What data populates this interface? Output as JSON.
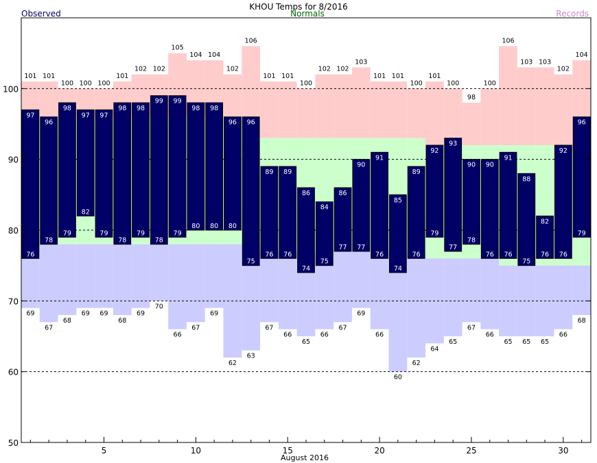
{
  "header": {
    "title": "KHOU Temps for 8/2016",
    "legend_observed": "Observed",
    "legend_normals": "Normals",
    "legend_records": "Records"
  },
  "colors": {
    "observed": "#000066",
    "observed_text": "#ffffff",
    "record_band": "#ffcccc",
    "normal_band": "#ccffcc",
    "record_low_band": "#ccccff",
    "legend_observed": "#000066",
    "legend_normals": "#006600",
    "legend_records": "#cc88cc"
  },
  "chart_data": {
    "type": "bar",
    "title": "KHOU Temps for 8/2016",
    "xlabel": "August 2016",
    "ylabel": "",
    "ylim": [
      50,
      110
    ],
    "xlim": [
      0.5,
      31.5
    ],
    "grid_lines_y": [
      60,
      70,
      80,
      90,
      100
    ],
    "yticks": [
      50,
      60,
      70,
      80,
      90,
      100
    ],
    "xticks": [
      5,
      10,
      15,
      20,
      25,
      30
    ],
    "days": [
      1,
      2,
      3,
      4,
      5,
      6,
      7,
      8,
      9,
      10,
      11,
      12,
      13,
      14,
      15,
      16,
      17,
      18,
      19,
      20,
      21,
      22,
      23,
      24,
      25,
      26,
      27,
      28,
      29,
      30,
      31
    ],
    "record_high": [
      101,
      101,
      100,
      100,
      100,
      101,
      102,
      102,
      105,
      104,
      104,
      102,
      106,
      101,
      101,
      100,
      102,
      102,
      103,
      101,
      101,
      100,
      101,
      100,
      98,
      100,
      106,
      103,
      103,
      102,
      104
    ],
    "normal_high": [
      96,
      96,
      96,
      96,
      96,
      96,
      96,
      96,
      96,
      96,
      96,
      96,
      96,
      93,
      93,
      93,
      93,
      93,
      93,
      93,
      93,
      93,
      92,
      92,
      92,
      92,
      92,
      92,
      92,
      91,
      91
    ],
    "normal_low": [
      78,
      78,
      78,
      78,
      78,
      78,
      78,
      78,
      78,
      78,
      78,
      78,
      78,
      77,
      77,
      77,
      77,
      77,
      77,
      77,
      77,
      77,
      76,
      76,
      76,
      76,
      75,
      75,
      75,
      75,
      75
    ],
    "record_low": [
      69,
      67,
      68,
      69,
      69,
      68,
      69,
      70,
      66,
      67,
      69,
      62,
      63,
      67,
      66,
      65,
      66,
      67,
      69,
      66,
      60,
      62,
      64,
      65,
      67,
      66,
      65,
      65,
      65,
      66,
      68
    ],
    "observed_high": [
      97,
      96,
      98,
      97,
      97,
      98,
      98,
      99,
      99,
      98,
      98,
      96,
      96,
      89,
      89,
      86,
      84,
      86,
      90,
      91,
      85,
      89,
      92,
      93,
      90,
      90,
      91,
      88,
      82,
      92,
      96
    ],
    "observed_low": [
      76,
      78,
      79,
      82,
      79,
      78,
      79,
      78,
      79,
      80,
      80,
      80,
      75,
      76,
      76,
      74,
      75,
      77,
      77,
      76,
      74,
      76,
      79,
      77,
      78,
      76,
      76,
      75,
      76,
      76,
      79
    ],
    "legend": [
      "Observed",
      "Normals",
      "Records"
    ]
  }
}
